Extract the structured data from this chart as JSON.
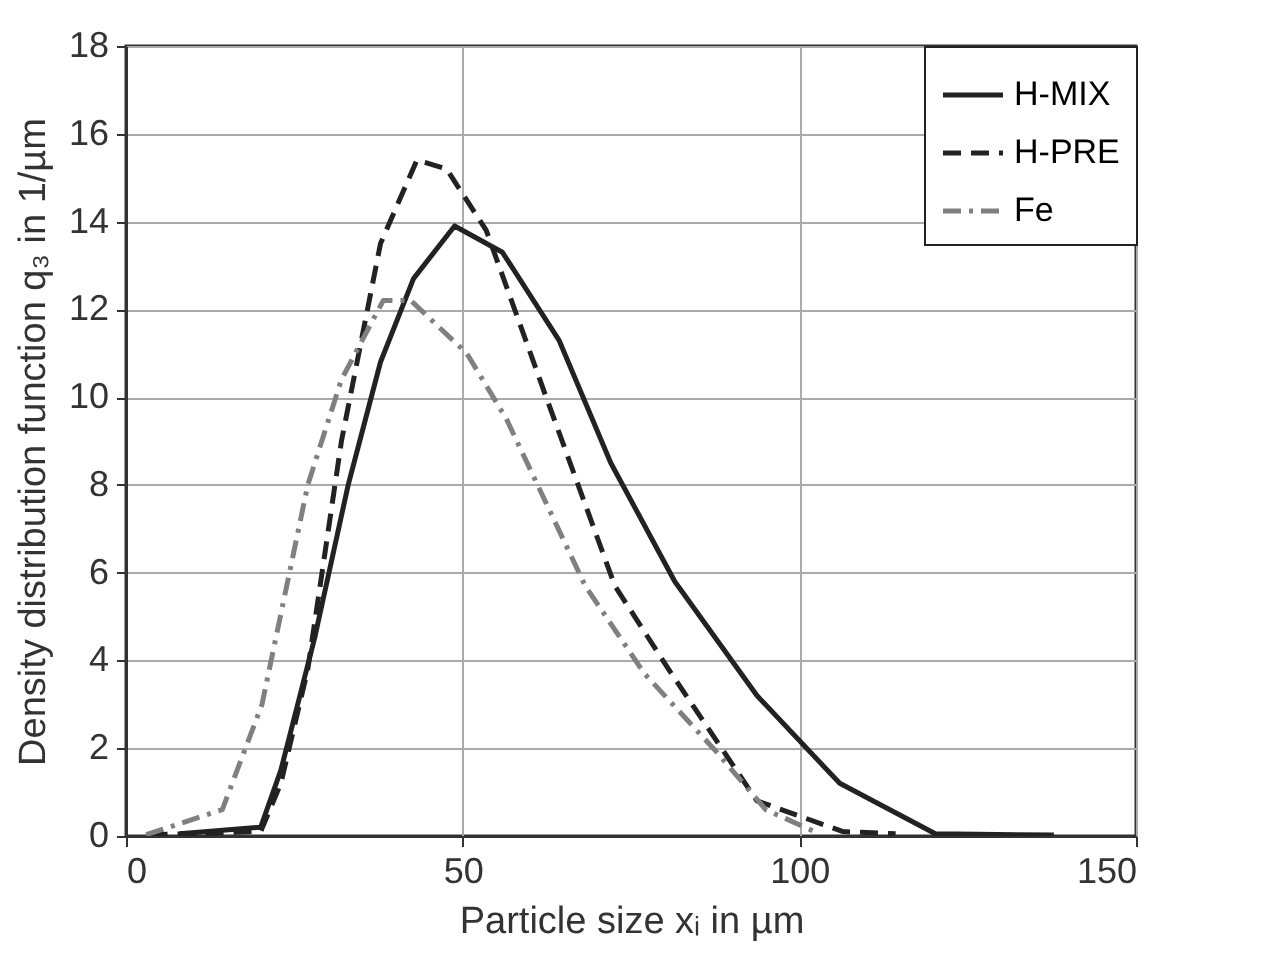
{
  "chart_data": {
    "type": "line",
    "xlabel": "Particle size xᵢ in µm",
    "ylabel": "Density distribution function q₃ in 1/µm",
    "xlim": [
      0,
      150
    ],
    "xticks": [
      0,
      50,
      100,
      150
    ],
    "ylim": [
      0,
      18
    ],
    "yticks": [
      0,
      2,
      4,
      6,
      8,
      10,
      12,
      14,
      16,
      18
    ],
    "grid": true,
    "legend": "top right",
    "marker": "none",
    "series": [
      {
        "name": "H-MIX",
        "color": "#222222",
        "line_style": "solid",
        "x": [
          8,
          20,
          23,
          28,
          33,
          37.8,
          42.7,
          48.8,
          55.9,
          64.3,
          72,
          81.5,
          93.7,
          106,
          120.2,
          137.8
        ],
        "values": [
          0.05,
          0.2,
          1.5,
          4.5,
          8,
          10.8,
          12.7,
          13.9,
          13.3,
          11.3,
          8.5,
          5.8,
          3.2,
          1.2,
          0.05,
          0.02
        ]
      },
      {
        "name": "H-PRE",
        "color": "#222222",
        "line_style": "dashed",
        "x": [
          3.5,
          20,
          23,
          27,
          32,
          37.8,
          43.2,
          47.6,
          53.5,
          62.4,
          72.6,
          81,
          93.7,
          106.5,
          114.3
        ],
        "values": [
          0.03,
          0.1,
          1.2,
          3.8,
          9,
          13.5,
          15.4,
          15.2,
          13.8,
          10,
          5.7,
          3.7,
          0.8,
          0.1,
          0.05
        ]
      },
      {
        "name": "Fe",
        "color": "#808080",
        "line_style": "dashdot",
        "x": [
          3,
          14.3,
          20.2,
          27,
          32,
          38.2,
          42.3,
          50.6,
          56.5,
          68.2,
          77,
          87.8,
          95,
          103
        ],
        "values": [
          0.03,
          0.6,
          3,
          8,
          10.4,
          12.2,
          12.2,
          11,
          9.5,
          5.7,
          3.7,
          1.9,
          0.6,
          0.05
        ]
      }
    ]
  }
}
